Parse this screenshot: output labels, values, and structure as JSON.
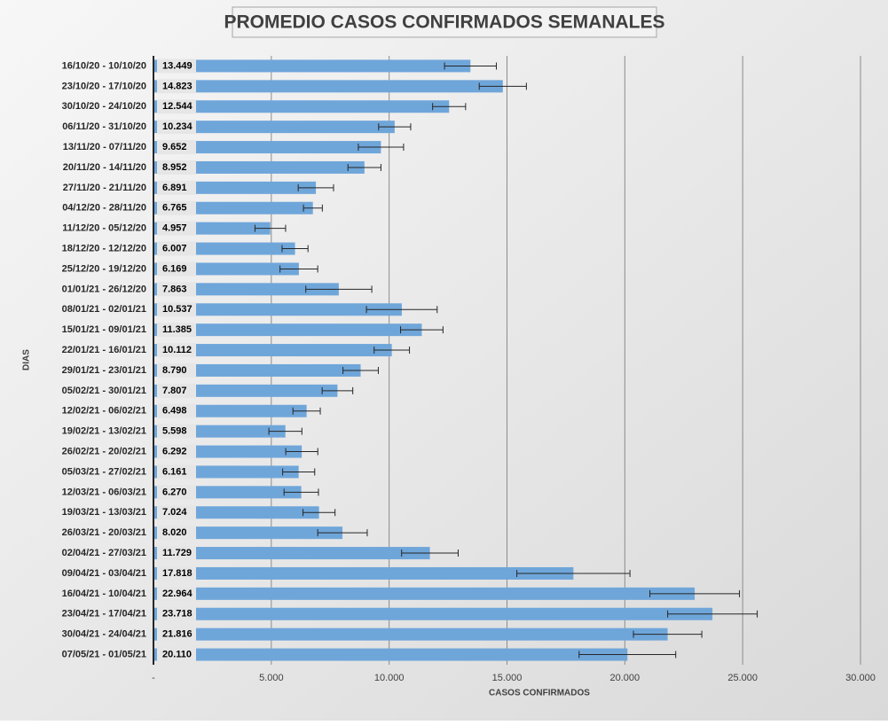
{
  "chart_data": {
    "type": "bar",
    "orientation": "horizontal",
    "title": "PROMEDIO CASOS CONFIRMADOS SEMANALES",
    "x_label": "CASOS CONFIRMADOS",
    "y_label": "DIAS",
    "categories": [
      "16/10/20 - 10/10/20",
      "23/10/20 - 17/10/20",
      "30/10/20 - 24/10/20",
      "06/11/20 - 31/10/20",
      "13/11/20 - 07/11/20",
      "20/11/20 - 14/11/20",
      "27/11/20 - 21/11/20",
      "04/12/20 - 28/11/20",
      "11/12/20 - 05/12/20",
      "18/12/20 - 12/12/20",
      "25/12/20 - 19/12/20",
      "01/01/21 - 26/12/20",
      "08/01/21 - 02/01/21",
      "15/01/21 - 09/01/21",
      "22/01/21 - 16/01/21",
      "29/01/21 - 23/01/21",
      "05/02/21 - 30/01/21",
      "12/02/21 - 06/02/21",
      "19/02/21 - 13/02/21",
      "26/02/21 - 20/02/21",
      "05/03/21 - 27/02/21",
      "12/03/21 - 06/03/21",
      "19/03/21 - 13/03/21",
      "26/03/21 - 20/03/21",
      "02/04/21 - 27/03/21",
      "09/04/21 - 03/04/21",
      "16/04/21 - 10/04/21",
      "23/04/21 - 17/04/21",
      "30/04/21 - 24/04/21",
      "07/05/21 - 01/05/21"
    ],
    "values": [
      13449,
      14823,
      12544,
      10234,
      9652,
      8952,
      6891,
      6765,
      4957,
      6007,
      6169,
      7863,
      10537,
      11385,
      10112,
      8790,
      7807,
      6498,
      5598,
      6292,
      6161,
      6270,
      7024,
      8020,
      11729,
      17818,
      22964,
      23718,
      21816,
      20110
    ],
    "value_labels": [
      "13.449",
      "14.823",
      "12.544",
      "10.234",
      "9.652",
      "8.952",
      "6.891",
      "6.765",
      "4.957",
      "6.007",
      "6.169",
      "7.863",
      "10.537",
      "11.385",
      "10.112",
      "8.790",
      "7.807",
      "6.498",
      "5.598",
      "6.292",
      "6.161",
      "6.270",
      "7.024",
      "8.020",
      "11.729",
      "17.818",
      "22.964",
      "23.718",
      "21.816",
      "20.110"
    ],
    "errors": [
      1100,
      1000,
      700,
      680,
      960,
      700,
      750,
      400,
      650,
      550,
      800,
      1400,
      1500,
      900,
      750,
      750,
      650,
      580,
      700,
      680,
      680,
      730,
      680,
      1050,
      1200,
      2400,
      1900,
      1900,
      1450,
      2050
    ],
    "color": "#6fa6da",
    "xlim": [
      0,
      30000
    ],
    "xticks": [
      {
        "value": 0,
        "label": "-"
      },
      {
        "value": 5000,
        "label": "5.000"
      },
      {
        "value": 10000,
        "label": "10.000"
      },
      {
        "value": 15000,
        "label": "15.000"
      },
      {
        "value": 20000,
        "label": "20.000"
      },
      {
        "value": 25000,
        "label": "25.000"
      },
      {
        "value": 30000,
        "label": "30.000"
      }
    ],
    "grid": true
  }
}
